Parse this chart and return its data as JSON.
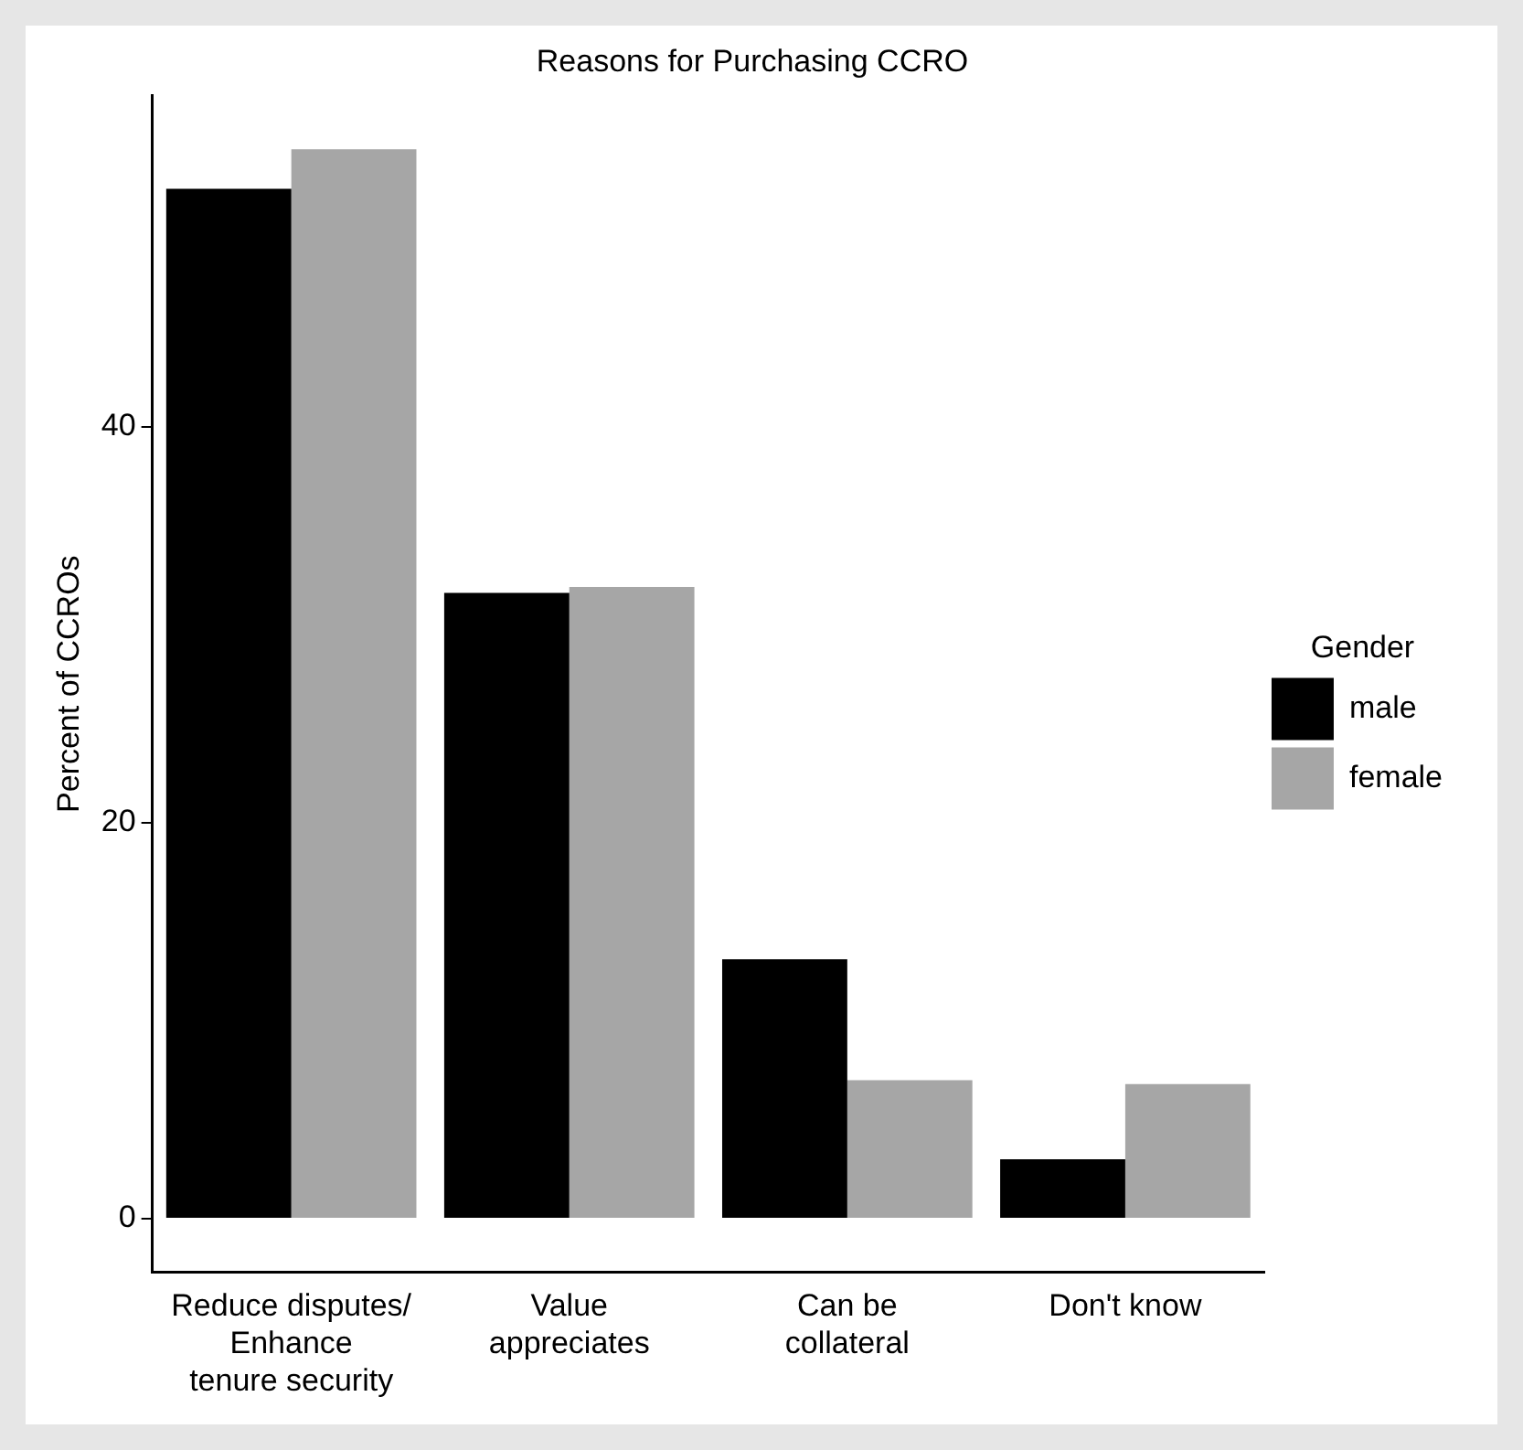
{
  "chart_data": {
    "type": "bar",
    "title": "Reasons for Purchasing CCRO",
    "ylabel": "Percent of CCROs",
    "legend_title": "Gender",
    "categories": [
      "Reduce disputes/\nEnhance\ntenure security",
      "Value\nappreciates",
      "Can be\ncollateral",
      "Don't know"
    ],
    "series": [
      {
        "name": "male",
        "color": "#000000",
        "values": [
          52.0,
          31.6,
          13.1,
          3.0
        ]
      },
      {
        "name": "female",
        "color": "#a6a6a6",
        "values": [
          54.0,
          31.9,
          7.0,
          6.8
        ]
      }
    ],
    "ylim": [
      -2.7,
      56.7
    ],
    "yticks": [
      0,
      20,
      40
    ],
    "grid": false,
    "legend": "right"
  }
}
